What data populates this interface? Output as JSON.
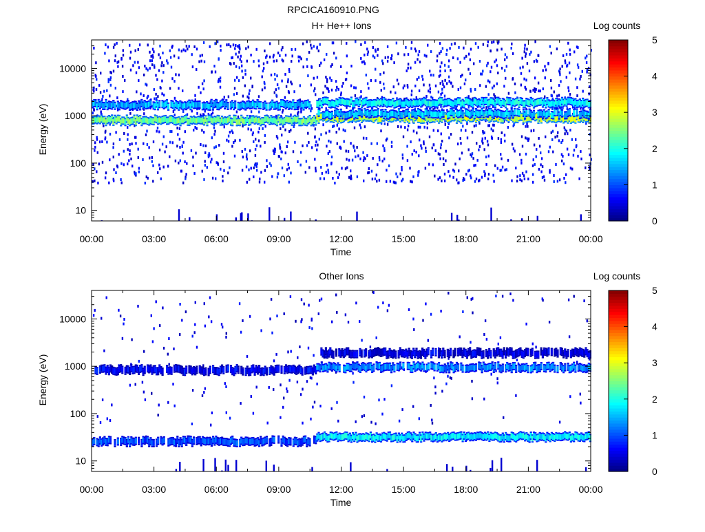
{
  "figure": {
    "title": "RPCICA160910.PNG"
  },
  "colorbar": {
    "label": "Log counts",
    "ticks": [
      "0",
      "1",
      "2",
      "3",
      "4",
      "5"
    ],
    "range": [
      0,
      5
    ],
    "colormap": [
      "#00007f",
      "#0000ff",
      "#007fff",
      "#00ffff",
      "#7fff7f",
      "#ffff00",
      "#ff7f00",
      "#ff0000",
      "#7f0000"
    ]
  },
  "chart_data": [
    {
      "type": "heatmap",
      "title": "H+ He++ Ions",
      "xlabel": "Time",
      "ylabel": "Energy (eV)",
      "x_ticks": [
        "00:00",
        "03:00",
        "06:00",
        "09:00",
        "12:00",
        "15:00",
        "18:00",
        "21:00",
        "00:00"
      ],
      "xlim_hours": [
        0,
        24
      ],
      "y_ticks": [
        "10",
        "100",
        "1000",
        "10000"
      ],
      "y_scale": "log",
      "ylim": [
        6,
        40000
      ],
      "bands": [
        {
          "from_hour": 0,
          "to_hour": 10.8,
          "energy_eV": 800,
          "log_counts": 2.4
        },
        {
          "from_hour": 10.8,
          "to_hour": 24,
          "energy_eV": 900,
          "log_counts": 2.8
        },
        {
          "from_hour": 10.8,
          "to_hour": 24,
          "energy_eV": 1100,
          "log_counts": 1.6
        },
        {
          "from_hour": 0,
          "to_hour": 10.5,
          "energy_eV": 1700,
          "log_counts": 1.5
        },
        {
          "from_hour": 10.8,
          "to_hour": 24,
          "energy_eV": 1900,
          "log_counts": 1.9
        }
      ],
      "background": {
        "energy_min_eV": 40,
        "energy_max_eV": 40000,
        "log_counts": 0.3
      },
      "spikes": {
        "energy_min_eV": 6,
        "energy_max_eV": 12,
        "log_counts": 0.4
      }
    },
    {
      "type": "heatmap",
      "title": "Other Ions",
      "xlabel": "Time",
      "ylabel": "Energy (eV)",
      "x_ticks": [
        "00:00",
        "03:00",
        "06:00",
        "09:00",
        "12:00",
        "15:00",
        "18:00",
        "21:00",
        "00:00"
      ],
      "xlim_hours": [
        0,
        24
      ],
      "y_ticks": [
        "10",
        "100",
        "1000",
        "10000"
      ],
      "y_scale": "log",
      "ylim": [
        6,
        40000
      ],
      "bands": [
        {
          "from_hour": 0,
          "to_hour": 10.8,
          "energy_eV": 830,
          "log_counts": 0.6
        },
        {
          "from_hour": 10.8,
          "to_hour": 24,
          "energy_eV": 950,
          "log_counts": 1.3
        },
        {
          "from_hour": 11,
          "to_hour": 24,
          "energy_eV": 1900,
          "log_counts": 0.5
        },
        {
          "from_hour": 0,
          "to_hour": 10.8,
          "energy_eV": 26,
          "log_counts": 1.0
        },
        {
          "from_hour": 10.8,
          "to_hour": 24,
          "energy_eV": 32,
          "log_counts": 1.8
        }
      ],
      "background": {
        "energy_min_eV": 60,
        "energy_max_eV": 40000,
        "log_counts": 0.2
      },
      "spikes": {
        "energy_min_eV": 6,
        "energy_max_eV": 12,
        "log_counts": 0.4
      }
    }
  ]
}
